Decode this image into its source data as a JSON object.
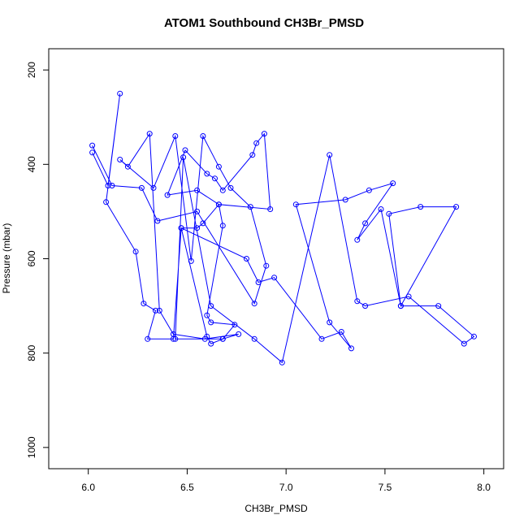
{
  "chart_data": {
    "type": "line",
    "title": "ATOM1 Southbound CH3Br_PMSD",
    "xlabel": "CH3Br_PMSD",
    "ylabel": "Pressure (mbar)",
    "xlim": [
      5.8,
      8.1
    ],
    "ylim": [
      1045,
      155
    ],
    "x_ticks": [
      6.0,
      6.5,
      7.0,
      7.5,
      8.0
    ],
    "x_tick_labels": [
      "6.0",
      "6.5",
      "7.0",
      "7.5",
      "8.0"
    ],
    "y_ticks": [
      200,
      400,
      600,
      800,
      1000
    ],
    "y_tick_labels": [
      "200",
      "400",
      "600",
      "800",
      "1000"
    ],
    "grid": false,
    "legend": "none",
    "series_color": "#0000ff",
    "series": [
      {
        "x": [
          6.02,
          6.1,
          6.16,
          6.09,
          6.24,
          6.28,
          6.34,
          6.3,
          6.43,
          6.47,
          6.6,
          6.62,
          6.68,
          6.74,
          6.62,
          6.6,
          6.68,
          6.66,
          6.55,
          6.4,
          6.49,
          6.6,
          6.64,
          6.68,
          6.83,
          6.85,
          6.89,
          6.92,
          6.66,
          6.58,
          6.55,
          6.47,
          6.8,
          6.86,
          6.94,
          7.18,
          7.28,
          7.33,
          7.22,
          7.05,
          7.3,
          7.42,
          7.54,
          7.4,
          7.36,
          7.48,
          7.58,
          7.86,
          7.68,
          7.52,
          7.58,
          7.77,
          7.95,
          7.9,
          7.62,
          7.4,
          7.36,
          7.22,
          6.98,
          6.84,
          6.62,
          6.48,
          6.44,
          6.68,
          6.76,
          6.59,
          6.43,
          6.36,
          6.31,
          6.2,
          6.16,
          6.33,
          6.44,
          6.52,
          6.58,
          6.66,
          6.72,
          6.82,
          6.9,
          6.84,
          6.55,
          6.35,
          6.27,
          6.12,
          6.02
        ],
        "y": [
          375,
          445,
          250,
          480,
          585,
          695,
          710,
          770,
          770,
          535,
          765,
          780,
          770,
          740,
          735,
          720,
          530,
          485,
          455,
          465,
          370,
          420,
          430,
          455,
          380,
          355,
          335,
          495,
          485,
          525,
          535,
          535,
          600,
          650,
          640,
          770,
          755,
          790,
          735,
          485,
          475,
          455,
          440,
          525,
          560,
          495,
          700,
          490,
          490,
          505,
          700,
          700,
          765,
          780,
          680,
          700,
          690,
          380,
          820,
          770,
          700,
          385,
          770,
          770,
          760,
          770,
          760,
          710,
          335,
          405,
          390,
          450,
          340,
          605,
          340,
          405,
          450,
          490,
          615,
          695,
          500,
          520,
          450,
          445,
          360
        ]
      }
    ]
  }
}
